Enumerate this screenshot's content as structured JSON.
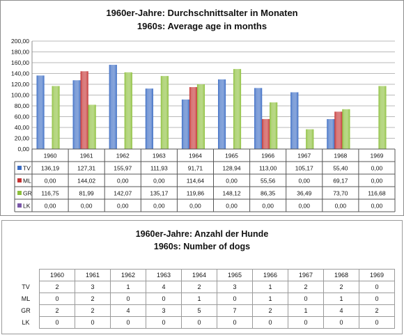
{
  "chart_data": [
    {
      "type": "bar",
      "title": "1960er-Jahre: Durchschnittsalter in Monaten",
      "subtitle": "1960s: Average age in months",
      "categories": [
        "1960",
        "1961",
        "1962",
        "1963",
        "1964",
        "1965",
        "1966",
        "1967",
        "1968",
        "1969"
      ],
      "series": [
        {
          "name": "TV",
          "color": "#3b6cc4",
          "values": [
            136.19,
            127.31,
            155.97,
            111.93,
            91.71,
            128.94,
            113.0,
            105.17,
            55.4,
            0.0
          ],
          "labels": [
            "136,19",
            "127,31",
            "155,97",
            "111,93",
            "91,71",
            "128,94",
            "113,00",
            "105,17",
            "55,40",
            "0,00"
          ]
        },
        {
          "name": "ML",
          "color": "#c43232",
          "values": [
            0.0,
            144.02,
            0.0,
            0.0,
            114.64,
            0.0,
            55.56,
            0.0,
            69.17,
            0.0
          ],
          "labels": [
            "0,00",
            "144,02",
            "0,00",
            "0,00",
            "114,64",
            "0,00",
            "55,56",
            "0,00",
            "69,17",
            "0,00"
          ]
        },
        {
          "name": "GR",
          "color": "#8dc03c",
          "values": [
            116.75,
            81.99,
            142.07,
            135.17,
            119.86,
            148.12,
            86.35,
            36.49,
            73.7,
            116.68
          ],
          "labels": [
            "116,75",
            "81,99",
            "142,07",
            "135,17",
            "119,86",
            "148,12",
            "86,35",
            "36,49",
            "73,70",
            "116,68"
          ]
        },
        {
          "name": "LK",
          "color": "#7a56a8",
          "values": [
            0,
            0,
            0,
            0,
            0,
            0,
            0,
            0,
            0,
            0
          ],
          "labels": [
            "0,00",
            "0,00",
            "0,00",
            "0,00",
            "0,00",
            "0,00",
            "0,00",
            "0,00",
            "0,00",
            "0,00"
          ]
        }
      ],
      "ylim": [
        0,
        200
      ],
      "yticks": [
        "0,00",
        "20,00",
        "40,00",
        "60,00",
        "80,00",
        "100,00",
        "120,00",
        "140,00",
        "160,00",
        "180,00",
        "200,00"
      ],
      "grid": true,
      "legend": "data-table"
    },
    {
      "type": "table",
      "title": "1960er-Jahre: Anzahl der Hunde",
      "subtitle": "1960s: Number of dogs",
      "columns": [
        "1960",
        "1961",
        "1962",
        "1963",
        "1964",
        "1965",
        "1966",
        "1967",
        "1968",
        "1969"
      ],
      "rows": [
        {
          "label": "TV",
          "values": [
            "2",
            "3",
            "1",
            "4",
            "2",
            "3",
            "1",
            "2",
            "2",
            "0"
          ]
        },
        {
          "label": "ML",
          "values": [
            "0",
            "2",
            "0",
            "0",
            "1",
            "0",
            "1",
            "0",
            "1",
            "0"
          ]
        },
        {
          "label": "GR",
          "values": [
            "2",
            "2",
            "4",
            "3",
            "5",
            "7",
            "2",
            "1",
            "4",
            "2"
          ]
        },
        {
          "label": "LK",
          "values": [
            "0",
            "0",
            "0",
            "0",
            "0",
            "0",
            "0",
            "0",
            "0",
            "0"
          ]
        }
      ]
    }
  ]
}
